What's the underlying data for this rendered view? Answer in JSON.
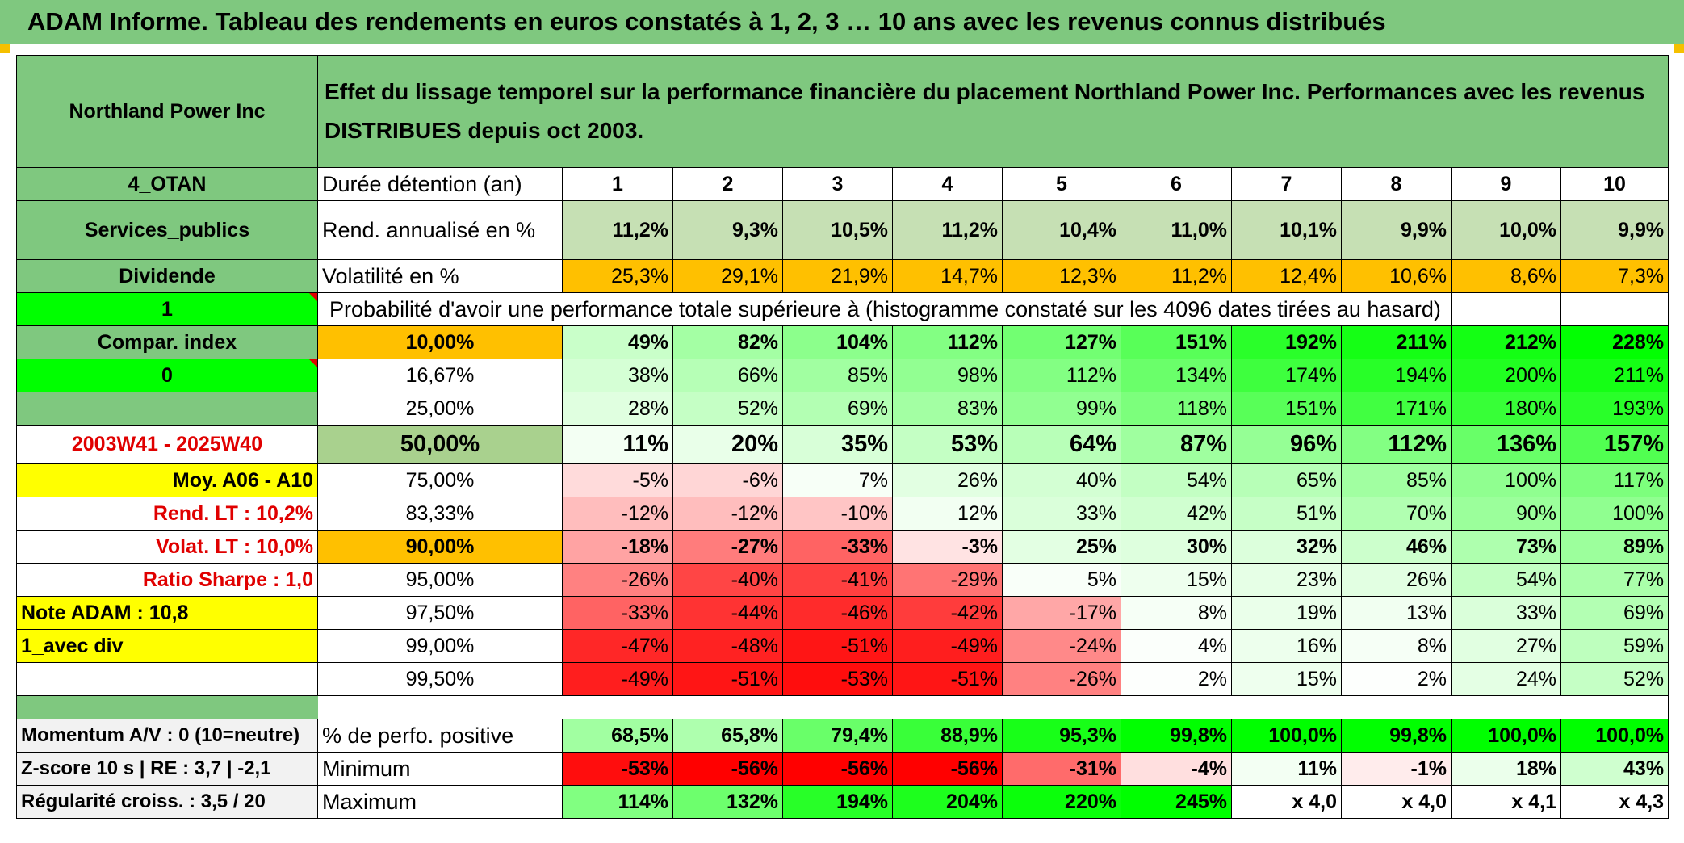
{
  "title": "ADAM Informe. Tableau des rendements en euros constatés à 1, 2, 3 … 10 ans avec les revenus connus distribués",
  "header": {
    "company": "Northland Power Inc",
    "description": "Effet du lissage temporel sur la performance financière du placement Northland Power Inc. Performances avec les revenus DISTRIBUES depuis oct 2003."
  },
  "left_labels": {
    "otan": "4_OTAN",
    "sector": "Services_publics",
    "dividend": "Dividende",
    "one": "1",
    "compar": "Compar. index",
    "zero": "0",
    "period": "2003W41 - 2025W40",
    "moy": "Moy. A06 - A10",
    "rend_lt": "Rend. LT :    10,2%",
    "volat_lt": "Volat. LT :    10,0%",
    "sharpe": "Ratio Sharpe :    1,0",
    "note": "Note ADAM : 10,8",
    "avec_div": "1_avec div",
    "momentum": "Momentum A/V : 0 (10=neutre)",
    "zscore": "Z-score 10 s | RE : 3,7 | -2,1",
    "regularite": "Régularité croiss. : 3,5 / 20"
  },
  "row_labels": {
    "duree": "Durée détention (an)",
    "rend": "Rend. annualisé en %",
    "volat": "Volatilité en %",
    "proba": "Probabilité d'avoir une performance totale supérieure à (histogramme constaté sur les 4096 dates tirées au hasard)",
    "perfo_pos": "% de perfo. positive",
    "minimum": "Minimum",
    "maximum": "Maximum"
  },
  "years": [
    "1",
    "2",
    "3",
    "4",
    "5",
    "6",
    "7",
    "8",
    "9",
    "10"
  ],
  "rend": [
    "11,2%",
    "9,3%",
    "10,5%",
    "11,2%",
    "10,4%",
    "11,0%",
    "10,1%",
    "9,9%",
    "10,0%",
    "9,9%"
  ],
  "volat": [
    "25,3%",
    "29,1%",
    "21,9%",
    "14,7%",
    "12,3%",
    "11,2%",
    "12,4%",
    "10,6%",
    "8,6%",
    "7,3%"
  ],
  "proba_rows": [
    {
      "pct": "10,00%",
      "values": [
        "49%",
        "82%",
        "104%",
        "112%",
        "127%",
        "151%",
        "192%",
        "211%",
        "212%",
        "228%"
      ]
    },
    {
      "pct": "16,67%",
      "values": [
        "38%",
        "66%",
        "85%",
        "98%",
        "112%",
        "134%",
        "174%",
        "194%",
        "200%",
        "211%"
      ]
    },
    {
      "pct": "25,00%",
      "values": [
        "28%",
        "52%",
        "69%",
        "83%",
        "99%",
        "118%",
        "151%",
        "171%",
        "180%",
        "193%"
      ]
    },
    {
      "pct": "50,00%",
      "values": [
        "11%",
        "20%",
        "35%",
        "53%",
        "64%",
        "87%",
        "96%",
        "112%",
        "136%",
        "157%"
      ]
    },
    {
      "pct": "75,00%",
      "values": [
        "-5%",
        "-6%",
        "7%",
        "26%",
        "40%",
        "54%",
        "65%",
        "85%",
        "100%",
        "117%"
      ]
    },
    {
      "pct": "83,33%",
      "values": [
        "-12%",
        "-12%",
        "-10%",
        "12%",
        "33%",
        "42%",
        "51%",
        "70%",
        "90%",
        "100%"
      ]
    },
    {
      "pct": "90,00%",
      "values": [
        "-18%",
        "-27%",
        "-33%",
        "-3%",
        "25%",
        "30%",
        "32%",
        "46%",
        "73%",
        "89%"
      ]
    },
    {
      "pct": "95,00%",
      "values": [
        "-26%",
        "-40%",
        "-41%",
        "-29%",
        "5%",
        "15%",
        "23%",
        "26%",
        "54%",
        "77%"
      ]
    },
    {
      "pct": "97,50%",
      "values": [
        "-33%",
        "-44%",
        "-46%",
        "-42%",
        "-17%",
        "8%",
        "19%",
        "13%",
        "33%",
        "69%"
      ]
    },
    {
      "pct": "99,00%",
      "values": [
        "-47%",
        "-48%",
        "-51%",
        "-49%",
        "-24%",
        "4%",
        "16%",
        "8%",
        "27%",
        "59%"
      ]
    },
    {
      "pct": "99,50%",
      "values": [
        "-49%",
        "-51%",
        "-53%",
        "-51%",
        "-26%",
        "2%",
        "15%",
        "2%",
        "24%",
        "52%"
      ]
    }
  ],
  "perfo_pos": [
    "68,5%",
    "65,8%",
    "79,4%",
    "88,9%",
    "95,3%",
    "99,8%",
    "100,0%",
    "99,8%",
    "100,0%",
    "100,0%"
  ],
  "minimum": [
    "-53%",
    "-56%",
    "-56%",
    "-56%",
    "-31%",
    "-4%",
    "11%",
    "-1%",
    "18%",
    "43%"
  ],
  "maximum": [
    "114%",
    "132%",
    "194%",
    "204%",
    "220%",
    "245%",
    "x 4,0",
    "x 4,0",
    "x 4,1",
    "x 4,3"
  ],
  "colors": {
    "header_green": "#7fc87f",
    "yellow": "#ffff00",
    "orange": "#ffc000",
    "lime": "#00ff00",
    "label_red": "#e00000"
  }
}
